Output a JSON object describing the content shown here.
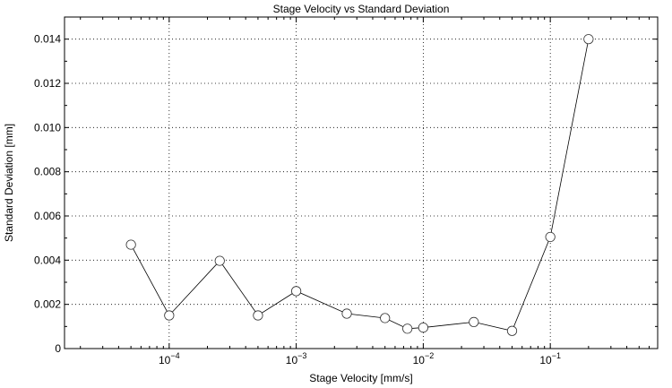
{
  "chart_data": {
    "type": "line",
    "title": "Stage Velocity vs Standard Deviation",
    "xlabel": "Stage Velocity [mm/s]",
    "ylabel": "Standard Deviation [mm]",
    "xscale": "log",
    "xlim": [
      1.5e-05,
      0.7
    ],
    "ylim": [
      0,
      0.015
    ],
    "grid": true,
    "x_tick_labels": [
      {
        "base": "10",
        "exp": "−4",
        "value": 0.0001
      },
      {
        "base": "10",
        "exp": "−3",
        "value": 0.001
      },
      {
        "base": "10",
        "exp": "−2",
        "value": 0.01
      },
      {
        "base": "10",
        "exp": "−1",
        "value": 0.1
      }
    ],
    "y_ticks": [
      0,
      0.002,
      0.004,
      0.006,
      0.008,
      0.01,
      0.012,
      0.014
    ],
    "y_tick_labels": [
      "0",
      "0.002",
      "0.004",
      "0.006",
      "0.008",
      "0.010",
      "0.012",
      "0.014"
    ],
    "series": [
      {
        "x": [
          5e-05,
          0.0001,
          0.00025,
          0.0005,
          0.001,
          0.0025,
          0.005,
          0.0075,
          0.01,
          0.025,
          0.05,
          0.1,
          0.2
        ],
        "y": [
          0.0047,
          0.0015,
          0.00397,
          0.0015,
          0.0026,
          0.00158,
          0.00138,
          0.0009,
          0.00095,
          0.0012,
          0.0008,
          0.00505,
          0.014
        ]
      }
    ],
    "marker": "open-circle",
    "line_color": "#000000",
    "marker_fill": "#ffffff"
  }
}
